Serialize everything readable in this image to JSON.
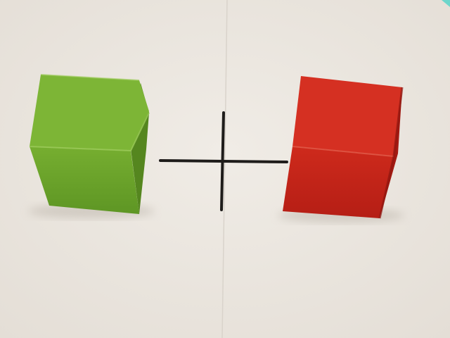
{
  "scene": {
    "background_color": "#EBE6DF",
    "crease_color": "#D9D3CB",
    "cross_color": "#1E1C1A",
    "left_block": {
      "name": "green-cube",
      "colors": {
        "face": "#6FA52C",
        "top": "#7DB536",
        "side": "#55861F",
        "edge": "#9CCB5A"
      }
    },
    "right_block": {
      "name": "red-cube",
      "colors": {
        "face": "#C62419",
        "top": "#D53022",
        "side": "#A31A12",
        "edge": "#E05A48"
      }
    }
  }
}
